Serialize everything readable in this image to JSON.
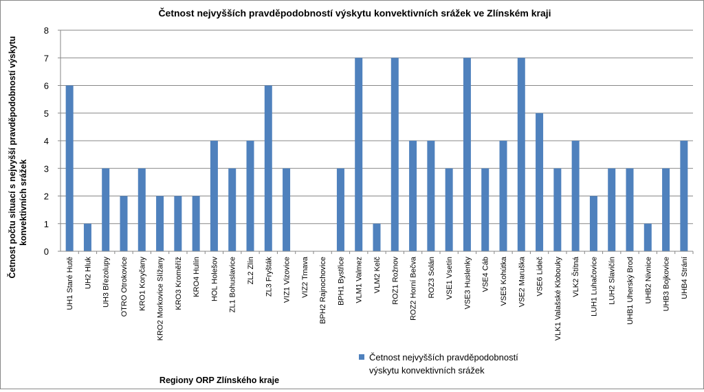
{
  "chart_data": {
    "type": "bar",
    "title": "Četnost nejvyšších pravděpodobností výskytu konvektivních srážek ve Zlínském kraji",
    "xlabel": "Regiony ORP Zlínského kraje",
    "ylabel_lines": [
      "Četnost počtu situací s nejvyšší pravděpodobností výskytu",
      "konvektivních srážek"
    ],
    "ylim": [
      0,
      8
    ],
    "yticks": [
      "0",
      "1",
      "2",
      "3",
      "4",
      "5",
      "6",
      "7",
      "8"
    ],
    "grid": true,
    "legend_position": "bottom-right",
    "series_color": "#4F81BD",
    "categories": [
      "UH1 Staré Hutě",
      "UH2 Hluk",
      "UH3 Březolupy",
      "OTRO Otrokovice",
      "KRO1 Koryčany",
      "KRO2 Morkovice Slížany",
      "KRO3 Kroměříž",
      "KRO4 Hulín",
      "HOL Holešov",
      "ZL1 Bohuslavice",
      "ZL2 Zlín",
      "ZL3 Fryšták",
      "VIZ1 Vizovice",
      "VIZ2 Trnava",
      "BPH2 Rajnochovice",
      "BPH1 Bystřice",
      "VLM1 Valmez",
      "VLM2 Kelč",
      "ROZ1 Rožnov",
      "ROZ2 Horní Bečva",
      "ROZ3 Solán",
      "VSE1 Vsetín",
      "VSE3 Huslenky",
      "VSE4 Cáb",
      "VSE5 Kohútka",
      "VSE2 Maruška",
      "VSE6 Lideč",
      "VLK1 Valašské Klobouky",
      "VLK2 Štítná",
      "LUH1 Luhačovice",
      "LUH2 Slavičín",
      "UHB1 Uherský Brod",
      "UHB2 Nivnice",
      "UHB3 Bojkovice",
      "UHB4 Strání"
    ],
    "series": [
      {
        "name_lines": [
          "Četnost nejvyšších pravděpodobností",
          "výskytu konvektivních srážek"
        ],
        "values": [
          6,
          1,
          3,
          2,
          3,
          2,
          2,
          2,
          4,
          3,
          4,
          6,
          3,
          0,
          0,
          3,
          7,
          1,
          7,
          4,
          4,
          3,
          7,
          3,
          4,
          7,
          5,
          3,
          4,
          2,
          3,
          3,
          1,
          3,
          4
        ]
      }
    ]
  }
}
